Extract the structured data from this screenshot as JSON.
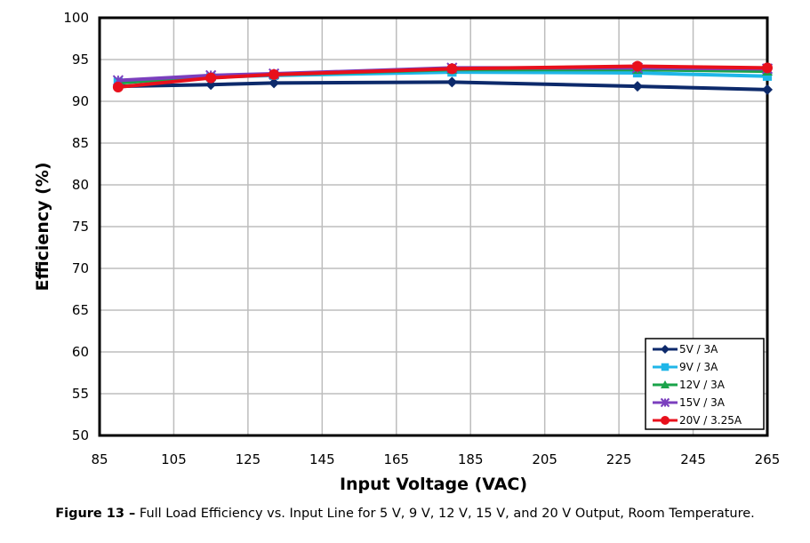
{
  "chart_data": {
    "type": "line",
    "xlabel": "Input Voltage (VAC)",
    "ylabel": "Efficiency (%)",
    "xlim": [
      85,
      265
    ],
    "ylim": [
      50,
      100
    ],
    "xticks": [
      85,
      105,
      125,
      145,
      165,
      185,
      205,
      225,
      245,
      265
    ],
    "yticks": [
      50,
      55,
      60,
      65,
      70,
      75,
      80,
      85,
      90,
      95,
      100
    ],
    "grid": true,
    "legend_position": "bottom-right",
    "series": [
      {
        "name": "5V / 3A",
        "color": "#0d2a6b",
        "marker": "diamond",
        "x": [
          90,
          115,
          132,
          180,
          230,
          265
        ],
        "y": [
          91.8,
          92.0,
          92.2,
          92.3,
          91.8,
          91.4
        ]
      },
      {
        "name": "9V / 3A",
        "color": "#1fb6e8",
        "marker": "square",
        "x": [
          90,
          115,
          132,
          180,
          230,
          265
        ],
        "y": [
          92.3,
          92.9,
          93.1,
          93.5,
          93.4,
          93.0
        ]
      },
      {
        "name": "12V / 3A",
        "color": "#1aa34a",
        "marker": "triangle",
        "x": [
          90,
          115,
          132,
          180,
          230,
          265
        ],
        "y": [
          92.2,
          93.0,
          93.2,
          93.8,
          93.8,
          93.6
        ]
      },
      {
        "name": "15V / 3A",
        "color": "#7b3fbe",
        "marker": "cross",
        "x": [
          90,
          115,
          132,
          180,
          230,
          265
        ],
        "y": [
          92.5,
          93.1,
          93.3,
          94.0,
          94.0,
          93.9
        ]
      },
      {
        "name": "20V / 3.25A",
        "color": "#e8101c",
        "marker": "circle",
        "x": [
          90,
          115,
          132,
          180,
          230,
          265
        ],
        "y": [
          91.7,
          92.8,
          93.2,
          93.9,
          94.2,
          94.0
        ]
      }
    ]
  },
  "caption": {
    "label": "Figure 13 –",
    "text": "Full Load Efficiency vs. Input Line for 5 V, 9 V, 12 V, 15 V, and 20 V Output, Room Temperature."
  }
}
